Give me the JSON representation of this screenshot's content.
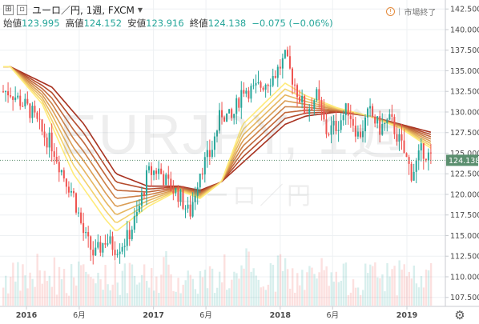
{
  "header": {
    "symbol_text": "ユーロ／円, 1週, FXCM",
    "ohlc": [
      {
        "label": "始値",
        "value": "123.995"
      },
      {
        "label": "高値",
        "value": "124.152"
      },
      {
        "label": "安値",
        "value": "123.916"
      },
      {
        "label": "終値",
        "value": "124.138"
      }
    ],
    "change": "−0.075 (−0.06%)",
    "status_label": "市場終了"
  },
  "watermark": {
    "line1": "EURJPY, 1週",
    "line2": "ユーロ／円"
  },
  "colors": {
    "up": "#26a69a",
    "down": "#ef5350",
    "ribbon_slow": "#a83220",
    "ribbon_fast": "#ffeb7a",
    "last_price_bg": "#5b8f6f",
    "grid": "#edf0f3"
  },
  "chart_data": {
    "type": "candlestick",
    "x_tick_labels": [
      "2016",
      "6月",
      "2017",
      "6月",
      "2018",
      "6月",
      "2019"
    ],
    "y_ticks": [
      107.5,
      110.0,
      112.5,
      115.0,
      117.5,
      120.0,
      122.5,
      125.0,
      127.5,
      130.0,
      132.5,
      135.0,
      137.5,
      140.0,
      142.5
    ],
    "y_tick_labels": [
      "107.500",
      "110.000",
      "112.500",
      "115.000",
      "117.500",
      "120.000",
      "122.500",
      "125.000",
      "127.500",
      "130.000",
      "132.500",
      "135.000",
      "137.500",
      "140.000",
      "142.500"
    ],
    "ylim": [
      106.6,
      143.3
    ],
    "last_price": 124.138,
    "last_price_label": "124.138",
    "grid": true,
    "price_path": [
      {
        "t": "2015-11",
        "v": 132.5
      },
      {
        "t": "2016-01",
        "v": 130.0
      },
      {
        "t": "2016-02",
        "v": 127.5
      },
      {
        "t": "2016-03",
        "v": 126.0
      },
      {
        "t": "2016-04",
        "v": 122.5
      },
      {
        "t": "2016-05",
        "v": 120.0
      },
      {
        "t": "2016-06",
        "v": 115.0
      },
      {
        "t": "2016-07",
        "v": 112.5
      },
      {
        "t": "2016-08",
        "v": 114.5
      },
      {
        "t": "2016-09",
        "v": 113.5
      },
      {
        "t": "2016-10",
        "v": 114.5
      },
      {
        "t": "2016-11",
        "v": 117.5
      },
      {
        "t": "2016-12",
        "v": 122.5
      },
      {
        "t": "2017-01",
        "v": 123.0
      },
      {
        "t": "2017-02",
        "v": 121.0
      },
      {
        "t": "2017-03",
        "v": 120.0
      },
      {
        "t": "2017-04",
        "v": 117.5
      },
      {
        "t": "2017-05",
        "v": 123.0
      },
      {
        "t": "2017-06",
        "v": 125.0
      },
      {
        "t": "2017-07",
        "v": 130.0
      },
      {
        "t": "2017-08",
        "v": 129.0
      },
      {
        "t": "2017-09",
        "v": 133.0
      },
      {
        "t": "2017-10",
        "v": 132.5
      },
      {
        "t": "2017-11",
        "v": 133.5
      },
      {
        "t": "2017-12",
        "v": 134.5
      },
      {
        "t": "2018-01",
        "v": 136.5
      },
      {
        "t": "2018-02",
        "v": 133.0
      },
      {
        "t": "2018-03",
        "v": 130.0
      },
      {
        "t": "2018-04",
        "v": 132.0
      },
      {
        "t": "2018-05",
        "v": 127.5
      },
      {
        "t": "2018-06",
        "v": 128.5
      },
      {
        "t": "2018-07",
        "v": 130.5
      },
      {
        "t": "2018-08",
        "v": 127.0
      },
      {
        "t": "2018-09",
        "v": 130.0
      },
      {
        "t": "2018-10",
        "v": 128.0
      },
      {
        "t": "2018-11",
        "v": 129.0
      },
      {
        "t": "2018-12",
        "v": 126.0
      },
      {
        "t": "2019-01",
        "v": 122.5
      },
      {
        "t": "2019-02",
        "v": 125.5
      },
      {
        "t": "2019-03",
        "v": 124.1
      }
    ],
    "ribbon_slow": [
      {
        "t": "2015-11",
        "v": 135.5
      },
      {
        "t": "2016-03",
        "v": 133.0
      },
      {
        "t": "2016-06",
        "v": 128.5
      },
      {
        "t": "2016-09",
        "v": 122.5
      },
      {
        "t": "2016-12",
        "v": 121.0
      },
      {
        "t": "2017-03",
        "v": 121.0
      },
      {
        "t": "2017-05",
        "v": 120.5
      },
      {
        "t": "2017-07",
        "v": 121.5
      },
      {
        "t": "2017-10",
        "v": 125.0
      },
      {
        "t": "2018-01",
        "v": 128.5
      },
      {
        "t": "2018-03",
        "v": 129.5
      },
      {
        "t": "2018-06",
        "v": 130.0
      },
      {
        "t": "2018-09",
        "v": 129.5
      },
      {
        "t": "2018-12",
        "v": 128.5
      },
      {
        "t": "2019-03",
        "v": 127.5
      }
    ],
    "ribbon_fast": [
      {
        "t": "2015-11",
        "v": 135.5
      },
      {
        "t": "2016-02",
        "v": 131.0
      },
      {
        "t": "2016-05",
        "v": 122.5
      },
      {
        "t": "2016-08",
        "v": 117.0
      },
      {
        "t": "2016-09",
        "v": 115.5
      },
      {
        "t": "2016-12",
        "v": 118.5
      },
      {
        "t": "2017-03",
        "v": 120.5
      },
      {
        "t": "2017-05",
        "v": 119.5
      },
      {
        "t": "2017-07",
        "v": 121.5
      },
      {
        "t": "2017-09",
        "v": 128.5
      },
      {
        "t": "2018-01",
        "v": 133.5
      },
      {
        "t": "2018-03",
        "v": 132.0
      },
      {
        "t": "2018-06",
        "v": 130.5
      },
      {
        "t": "2018-09",
        "v": 129.5
      },
      {
        "t": "2018-12",
        "v": 128.0
      },
      {
        "t": "2019-03",
        "v": 125.5
      }
    ]
  }
}
